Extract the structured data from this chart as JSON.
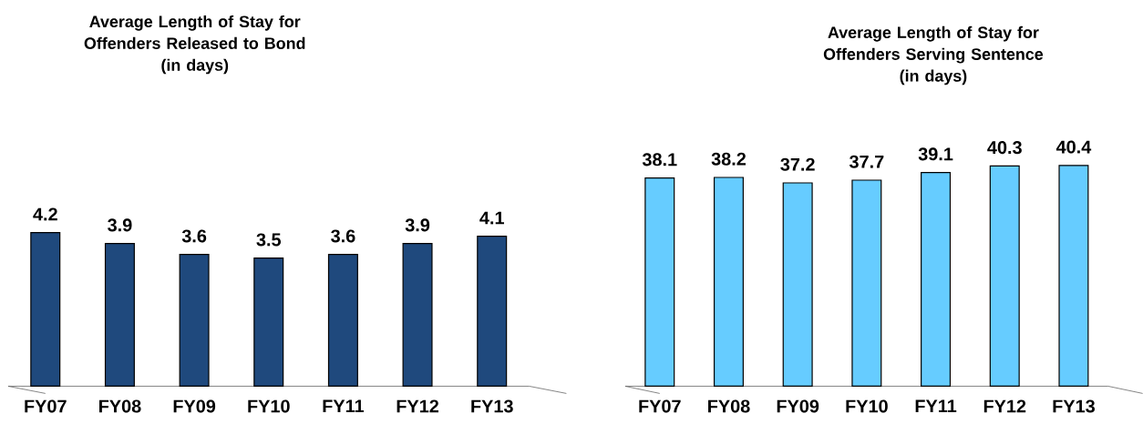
{
  "chart_data": [
    {
      "type": "bar",
      "title": "Average Length of Stay for Offenders Released to Bond",
      "subtitle": "(in days)",
      "categories": [
        "FY07",
        "FY08",
        "FY09",
        "FY10",
        "FY11",
        "FY12",
        "FY13"
      ],
      "values": [
        4.2,
        3.9,
        3.6,
        3.5,
        3.6,
        3.9,
        4.1
      ],
      "color": "#1f497d",
      "data_labels": true
    },
    {
      "type": "bar",
      "title": "Average Length of Stay for Offenders Serving Sentence",
      "subtitle": "(in days)",
      "categories": [
        "FY07",
        "FY08",
        "FY09",
        "FY10",
        "FY11",
        "FY12",
        "FY13"
      ],
      "values": [
        38.1,
        38.2,
        37.2,
        37.7,
        39.1,
        40.3,
        40.4
      ],
      "color": "#66ccff",
      "data_labels": true
    }
  ]
}
